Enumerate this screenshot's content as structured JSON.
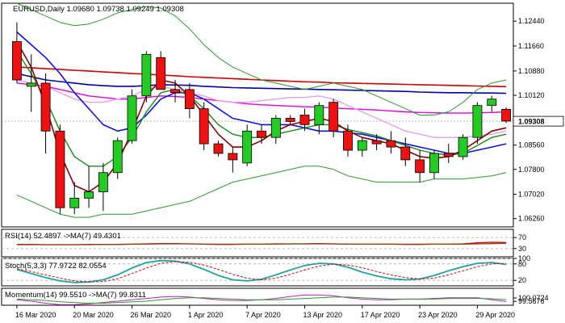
{
  "chart_data": [
    {
      "type": "candlestick",
      "title": "EURUSD,Daily  1.09680 1.09738 1.09249 1.09308",
      "current_price_label": "1.09308",
      "ylim": [
        1.06,
        1.13
      ],
      "y_ticks": [
        "1.12440",
        "1.11660",
        "1.10880",
        "1.10120",
        "1.09308",
        "1.08560",
        "1.07800",
        "1.07020",
        "1.06260"
      ],
      "x_labels": [
        "16 Mar 2020",
        "20 Mar 2020",
        "26 Mar 2020",
        "1 Apr 2020",
        "7 Apr 2020",
        "13 Apr 2020",
        "17 Apr 2020",
        "23 Apr 2020",
        "29 Apr 2020"
      ],
      "x_label_index": [
        0,
        4,
        8,
        12,
        16,
        20,
        24,
        28,
        32
      ],
      "candles": [
        {
          "o": 1.118,
          "h": 1.124,
          "l": 1.105,
          "c": 1.106
        },
        {
          "o": 1.104,
          "h": 1.114,
          "l": 1.096,
          "c": 1.105
        },
        {
          "o": 1.105,
          "h": 1.108,
          "l": 1.083,
          "c": 1.09
        },
        {
          "o": 1.09,
          "h": 1.092,
          "l": 1.064,
          "c": 1.066
        },
        {
          "o": 1.066,
          "h": 1.074,
          "l": 1.064,
          "c": 1.069
        },
        {
          "o": 1.069,
          "h": 1.079,
          "l": 1.066,
          "c": 1.071
        },
        {
          "o": 1.071,
          "h": 1.08,
          "l": 1.065,
          "c": 1.077
        },
        {
          "o": 1.077,
          "h": 1.088,
          "l": 1.075,
          "c": 1.087
        },
        {
          "o": 1.087,
          "h": 1.103,
          "l": 1.086,
          "c": 1.101
        },
        {
          "o": 1.101,
          "h": 1.115,
          "l": 1.099,
          "c": 1.114
        },
        {
          "o": 1.113,
          "h": 1.115,
          "l": 1.103,
          "c": 1.103
        },
        {
          "o": 1.103,
          "h": 1.106,
          "l": 1.099,
          "c": 1.102
        },
        {
          "o": 1.103,
          "h": 1.105,
          "l": 1.094,
          "c": 1.097
        },
        {
          "o": 1.097,
          "h": 1.099,
          "l": 1.084,
          "c": 1.086
        },
        {
          "o": 1.086,
          "h": 1.087,
          "l": 1.082,
          "c": 1.083
        },
        {
          "o": 1.083,
          "h": 1.085,
          "l": 1.077,
          "c": 1.081
        },
        {
          "o": 1.08,
          "h": 1.092,
          "l": 1.079,
          "c": 1.09
        },
        {
          "o": 1.09,
          "h": 1.092,
          "l": 1.086,
          "c": 1.088
        },
        {
          "o": 1.088,
          "h": 1.095,
          "l": 1.086,
          "c": 1.094
        },
        {
          "o": 1.094,
          "h": 1.095,
          "l": 1.092,
          "c": 1.093
        },
        {
          "o": 1.095,
          "h": 1.097,
          "l": 1.09,
          "c": 1.092
        },
        {
          "o": 1.092,
          "h": 1.099,
          "l": 1.089,
          "c": 1.098
        },
        {
          "o": 1.099,
          "h": 1.1,
          "l": 1.088,
          "c": 1.09
        },
        {
          "o": 1.09,
          "h": 1.092,
          "l": 1.082,
          "c": 1.084
        },
        {
          "o": 1.084,
          "h": 1.088,
          "l": 1.082,
          "c": 1.087
        },
        {
          "o": 1.087,
          "h": 1.089,
          "l": 1.084,
          "c": 1.086
        },
        {
          "o": 1.087,
          "h": 1.09,
          "l": 1.083,
          "c": 1.085
        },
        {
          "o": 1.085,
          "h": 1.088,
          "l": 1.079,
          "c": 1.081
        },
        {
          "o": 1.081,
          "h": 1.084,
          "l": 1.074,
          "c": 1.077
        },
        {
          "o": 1.077,
          "h": 1.084,
          "l": 1.075,
          "c": 1.083
        },
        {
          "o": 1.083,
          "h": 1.086,
          "l": 1.08,
          "c": 1.082
        },
        {
          "o": 1.082,
          "h": 1.089,
          "l": 1.081,
          "c": 1.088
        },
        {
          "o": 1.088,
          "h": 1.099,
          "l": 1.086,
          "c": 1.098
        },
        {
          "o": 1.098,
          "h": 1.101,
          "l": 1.096,
          "c": 1.1
        },
        {
          "o": 1.0968,
          "h": 1.0974,
          "l": 1.0925,
          "c": 1.0931
        }
      ],
      "overlays": [
        {
          "color": "#d00000",
          "width": 1.6,
          "values": [
            1.11,
            1.1098,
            1.1095,
            1.1093,
            1.109,
            1.1088,
            1.1085,
            1.1083,
            1.108,
            1.1078,
            1.1075,
            1.1073,
            1.107,
            1.1068,
            1.1066,
            1.1064,
            1.1062,
            1.106,
            1.1058,
            1.1056,
            1.1054,
            1.1053,
            1.1051,
            1.105,
            1.1049,
            1.1048,
            1.1047,
            1.1046,
            1.1045,
            1.1044,
            1.1043,
            1.1042,
            1.1041,
            1.104,
            1.1039
          ]
        },
        {
          "color": "#0000a0",
          "width": 1.6,
          "values": [
            1.108,
            1.107,
            1.106,
            1.1055,
            1.105,
            1.1045,
            1.1042,
            1.104,
            1.104,
            1.1042,
            1.1045,
            1.1044,
            1.1043,
            1.104,
            1.1038,
            1.1036,
            1.1035,
            1.1034,
            1.1033,
            1.1032,
            1.1031,
            1.103,
            1.1029,
            1.1028,
            1.1027,
            1.1026,
            1.1025,
            1.1024,
            1.1022,
            1.1021,
            1.102,
            1.102,
            1.1019,
            1.1019,
            1.1018
          ]
        },
        {
          "color": "#e000e0",
          "width": 1.4,
          "values": [
            1.105,
            1.1045,
            1.104,
            1.103,
            1.102,
            1.101,
            1.1005,
            1.1,
            1.1,
            1.1005,
            1.101,
            1.1008,
            1.1005,
            1.1,
            1.0995,
            1.099,
            1.0985,
            1.0982,
            1.098,
            1.0978,
            1.0976,
            1.0975,
            1.0972,
            1.097,
            1.0968,
            1.0966,
            1.0963,
            1.096,
            1.0958,
            1.0957,
            1.0956,
            1.0956,
            1.0957,
            1.0958,
            1.096
          ]
        },
        {
          "color": "#e8a0e8",
          "width": 1.4,
          "values": [
            1.106,
            1.105,
            1.104,
            1.102,
            1.1,
            1.099,
            1.099,
            1.1,
            1.101,
            1.103,
            1.104,
            1.103,
            1.102,
            1.101,
            1.0995,
            1.099,
            1.099,
            1.0995,
            1.1,
            1.1005,
            1.1005,
            1.101,
            1.1,
            1.098,
            1.096,
            1.094,
            1.092,
            1.09,
            1.089,
            1.088,
            1.088,
            1.088,
            1.0885,
            1.089,
            1.09
          ]
        },
        {
          "color": "#2a9a2a",
          "width": 1.0,
          "values": [
            1.13,
            1.128,
            1.126,
            1.124,
            1.123,
            1.1235,
            1.125,
            1.127,
            1.128,
            1.129,
            1.1285,
            1.126,
            1.122,
            1.117,
            1.113,
            1.11,
            1.108,
            1.106,
            1.105,
            1.104,
            1.103,
            1.104,
            1.105,
            1.104,
            1.103,
            1.101,
            1.099,
            1.097,
            1.095,
            1.095,
            1.096,
            1.099,
            1.103,
            1.105,
            1.106
          ]
        },
        {
          "color": "#2a9a2a",
          "width": 1.0,
          "values": [
            1.07,
            1.068,
            1.066,
            1.064,
            1.063,
            1.063,
            1.064,
            1.064,
            1.064,
            1.065,
            1.066,
            1.067,
            1.068,
            1.07,
            1.072,
            1.074,
            1.075,
            1.076,
            1.077,
            1.078,
            1.079,
            1.079,
            1.078,
            1.076,
            1.075,
            1.074,
            1.074,
            1.074,
            1.074,
            1.075,
            1.075,
            1.075,
            1.0755,
            1.076,
            1.077
          ]
        },
        {
          "color": "#1010e0",
          "width": 1.6,
          "values": [
            1.121,
            1.117,
            1.113,
            1.108,
            1.102,
            1.097,
            1.092,
            1.09,
            1.091,
            1.095,
            1.1,
            1.102,
            1.102,
            1.1,
            1.097,
            1.094,
            1.093,
            1.092,
            1.092,
            1.092,
            1.091,
            1.09,
            1.09,
            1.0895,
            1.089,
            1.088,
            1.087,
            1.086,
            1.085,
            1.084,
            1.083,
            1.083,
            1.084,
            1.085,
            1.086
          ]
        },
        {
          "color": "#1a8a1a",
          "width": 1.4,
          "values": [
            1.115,
            1.108,
            1.1,
            1.09,
            1.082,
            1.079,
            1.079,
            1.082,
            1.088,
            1.096,
            1.102,
            1.103,
            1.101,
            1.097,
            1.092,
            1.089,
            1.088,
            1.088,
            1.089,
            1.09,
            1.091,
            1.092,
            1.092,
            1.0905,
            1.0895,
            1.0885,
            1.087,
            1.0855,
            1.084,
            1.083,
            1.0825,
            1.083,
            1.0855,
            1.088,
            1.089
          ]
        },
        {
          "color": "#8b0000",
          "width": 1.6,
          "values": [
            1.118,
            1.11,
            1.098,
            1.083,
            1.073,
            1.071,
            1.074,
            1.08,
            1.09,
            1.101,
            1.106,
            1.105,
            1.101,
            1.095,
            1.089,
            1.085,
            1.085,
            1.087,
            1.09,
            1.092,
            1.093,
            1.094,
            1.093,
            1.09,
            1.088,
            1.087,
            1.086,
            1.084,
            1.082,
            1.0815,
            1.082,
            1.084,
            1.087,
            1.09,
            1.091
          ]
        }
      ]
    },
    {
      "type": "line",
      "title": "RSI(14) 52.4897  ->MA(7) 49.4301",
      "ylim": [
        0,
        100
      ],
      "y_ticks": [
        "70",
        "30"
      ],
      "series": [
        {
          "color": "#d00000",
          "values": [
            45,
            45,
            44,
            44,
            44,
            44,
            45,
            45,
            46,
            47,
            48,
            48,
            47,
            46,
            45,
            45,
            46,
            46,
            47,
            47,
            47,
            48,
            47,
            46,
            46,
            46,
            46,
            45,
            45,
            46,
            46,
            47,
            51,
            53,
            52
          ]
        },
        {
          "color": "#8b4513",
          "values": [
            44,
            44,
            44,
            44,
            44,
            45,
            45,
            45,
            46,
            46,
            47,
            47,
            47,
            46,
            46,
            46,
            46,
            46,
            46,
            47,
            47,
            47,
            47,
            46,
            46,
            46,
            46,
            46,
            46,
            46,
            46,
            46,
            47,
            48,
            49
          ]
        }
      ]
    },
    {
      "type": "line",
      "title": "Stoch(5,3,3) 77.9722 82.0554",
      "ylim": [
        0,
        100
      ],
      "y_ticks": [
        "100",
        "80",
        "20"
      ],
      "series": [
        {
          "color": "#20a0a0",
          "values": [
            60,
            45,
            30,
            18,
            12,
            14,
            22,
            40,
            65,
            85,
            92,
            90,
            80,
            60,
            38,
            22,
            18,
            24,
            40,
            58,
            74,
            82,
            80,
            68,
            50,
            36,
            26,
            22,
            25,
            38,
            55,
            70,
            82,
            85,
            78
          ]
        },
        {
          "color": "#d00000",
          "dashed": true,
          "values": [
            62,
            52,
            40,
            28,
            18,
            14,
            16,
            26,
            45,
            65,
            82,
            88,
            86,
            76,
            60,
            42,
            28,
            22,
            28,
            42,
            58,
            72,
            79,
            76,
            66,
            52,
            40,
            30,
            25,
            28,
            40,
            55,
            70,
            80,
            82
          ]
        }
      ]
    },
    {
      "type": "line",
      "title": "Momentum(14) 99.5510  ->MA(7) 99.8311",
      "ylim": [
        99.0,
        101.5
      ],
      "y_ticks": [
        "100.0724",
        "99.5676"
      ],
      "series": [
        {
          "color": "#c020c0",
          "values": [
            99.8,
            99.6,
            99.3,
            99.1,
            99.1,
            99.2,
            99.4,
            99.6,
            99.8,
            100.0,
            100.2,
            100.3,
            100.2,
            100.0,
            99.8,
            99.7,
            99.7,
            99.8,
            100.0,
            100.3,
            100.5,
            100.5,
            100.4,
            100.1,
            99.9,
            99.8,
            99.8,
            99.9,
            99.9,
            100.0,
            100.1,
            100.1,
            100.1,
            99.8,
            99.55
          ]
        },
        {
          "color": "#2a9a2a",
          "values": [
            99.9,
            99.8,
            99.7,
            99.5,
            99.4,
            99.3,
            99.3,
            99.4,
            99.5,
            99.6,
            99.8,
            100.0,
            100.1,
            100.1,
            100.0,
            99.9,
            99.8,
            99.8,
            99.8,
            99.9,
            100.0,
            100.1,
            100.2,
            100.2,
            100.1,
            100.0,
            99.9,
            99.9,
            99.9,
            99.9,
            100.0,
            100.0,
            100.0,
            99.95,
            99.83
          ]
        }
      ]
    }
  ]
}
